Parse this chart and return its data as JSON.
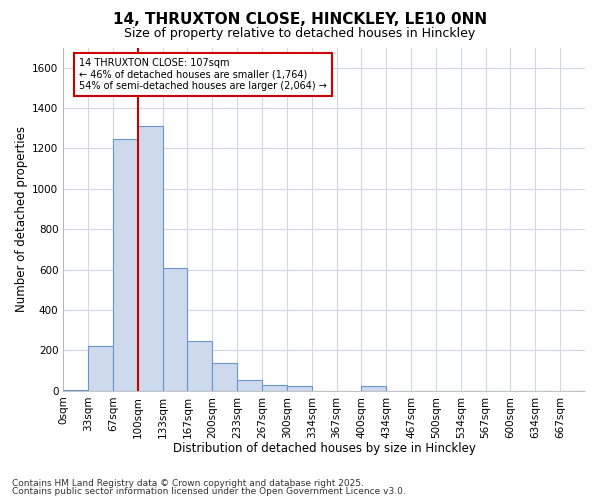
{
  "title_line1": "14, THRUXTON CLOSE, HINCKLEY, LE10 0NN",
  "title_line2": "Size of property relative to detached houses in Hinckley",
  "xlabel": "Distribution of detached houses by size in Hinckley",
  "ylabel": "Number of detached properties",
  "bar_fill_color": "#cdd9ed",
  "bar_edge_color": "#6897d0",
  "vline_color": "#cc0000",
  "annotation_text": "14 THRUXTON CLOSE: 107sqm\n← 46% of detached houses are smaller (1,764)\n54% of semi-detached houses are larger (2,064) →",
  "annotation_box_color": "#ffffff",
  "annotation_box_edge": "#cc0000",
  "footer_line1": "Contains HM Land Registry data © Crown copyright and database right 2025.",
  "footer_line2": "Contains public sector information licensed under the Open Government Licence v3.0.",
  "categories": [
    "0sqm",
    "33sqm",
    "67sqm",
    "100sqm",
    "133sqm",
    "167sqm",
    "200sqm",
    "233sqm",
    "267sqm",
    "300sqm",
    "334sqm",
    "367sqm",
    "400sqm",
    "434sqm",
    "467sqm",
    "500sqm",
    "534sqm",
    "567sqm",
    "600sqm",
    "634sqm",
    "667sqm"
  ],
  "values": [
    5,
    220,
    1245,
    1310,
    610,
    245,
    140,
    55,
    30,
    25,
    0,
    0,
    25,
    0,
    0,
    0,
    0,
    0,
    0,
    0,
    0
  ],
  "ylim": [
    0,
    1700
  ],
  "yticks": [
    0,
    200,
    400,
    600,
    800,
    1000,
    1200,
    1400,
    1600
  ],
  "background_color": "#ffffff",
  "plot_background": "#ffffff",
  "grid_color": "#d0d8e8",
  "vline_index": 3,
  "title_fontsize": 11,
  "subtitle_fontsize": 9,
  "axis_label_fontsize": 8.5,
  "tick_fontsize": 7.5,
  "footer_fontsize": 6.5
}
